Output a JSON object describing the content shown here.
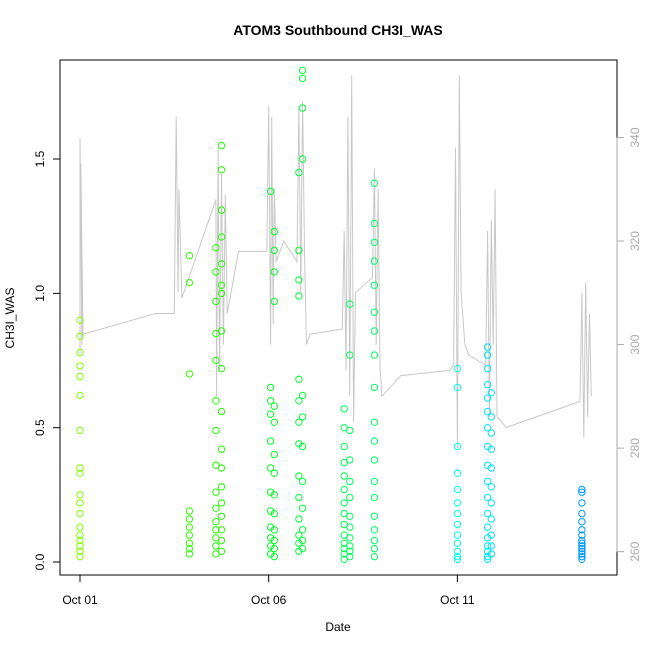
{
  "chart_data": {
    "type": "scatter",
    "title": "ATOM3 Southbound CH3I_WAS",
    "xlabel": "Date",
    "ylabel": "CH3I_WAS",
    "x_ticks": [
      "Oct 01",
      "Oct 06",
      "Oct 11"
    ],
    "x_tick_values": [
      1,
      6,
      11
    ],
    "xlim": [
      1,
      14.7
    ],
    "y_ticks": [
      "0.0",
      "0.5",
      "1.0",
      "1.5"
    ],
    "y_tick_values": [
      0,
      0.5,
      1.0,
      1.5
    ],
    "ylim": [
      0,
      1.85
    ],
    "y2_ticks": [
      "260",
      "280",
      "300",
      "320",
      "340"
    ],
    "y2_tick_values": [
      260,
      280,
      300,
      320,
      340
    ],
    "y2lim": [
      258,
      354
    ],
    "grid": false,
    "legend": "none",
    "colors": {
      "axis": "#000000",
      "axis2": "#aaaaaa",
      "trace": "#c8c8c8"
    },
    "series": [
      {
        "values_axis": "left",
        "points": [
          {
            "x": 1.0,
            "y": [
              0.02,
              0.04,
              0.06,
              0.08,
              0.1,
              0.13,
              0.18,
              0.22,
              0.25,
              0.33,
              0.35,
              0.49,
              0.62,
              0.69,
              0.73,
              0.78,
              0.84,
              0.9
            ],
            "color": "#7fff00"
          },
          {
            "x": 3.9,
            "y": [
              0.03,
              0.05,
              0.07,
              0.1,
              0.13,
              0.16,
              0.19,
              0.7,
              1.04,
              1.14
            ],
            "color": "#33ff00"
          },
          {
            "x": 4.6,
            "y": [
              0.03,
              0.06,
              0.09,
              0.12,
              0.15,
              0.2,
              0.26,
              0.36,
              0.49,
              0.6,
              0.75,
              0.85,
              0.97,
              1.08,
              1.17
            ],
            "color": "#22ff00"
          },
          {
            "x": 4.75,
            "y": [
              0.04,
              0.08,
              0.12,
              0.17,
              0.22,
              0.28,
              0.35,
              0.42,
              0.56,
              0.72,
              0.86,
              1.0,
              1.03,
              1.11,
              1.21,
              1.31,
              1.46,
              1.55
            ],
            "color": "#22ff00"
          },
          {
            "x": 6.05,
            "y": [
              0.03,
              0.06,
              0.09,
              0.13,
              0.19,
              0.26,
              0.35,
              0.45,
              0.55,
              0.6,
              0.65,
              1.38
            ],
            "color": "#00ff22"
          },
          {
            "x": 6.15,
            "y": [
              0.02,
              0.05,
              0.08,
              0.12,
              0.18,
              0.25,
              0.33,
              0.4,
              0.52,
              0.58,
              0.97,
              1.08,
              1.16,
              1.23
            ],
            "color": "#00ff22"
          },
          {
            "x": 6.8,
            "y": [
              0.04,
              0.07,
              0.1,
              0.16,
              0.24,
              0.32,
              0.44,
              0.52,
              0.6,
              0.68,
              0.99,
              1.05,
              1.16,
              1.45
            ],
            "color": "#00ff33"
          },
          {
            "x": 6.9,
            "y": [
              0.05,
              0.08,
              0.12,
              0.2,
              0.3,
              0.43,
              0.54,
              0.62,
              1.5,
              1.69,
              1.8,
              1.83
            ],
            "color": "#00ff33"
          },
          {
            "x": 8.0,
            "y": [
              0.01,
              0.03,
              0.05,
              0.07,
              0.1,
              0.14,
              0.18,
              0.22,
              0.27,
              0.32,
              0.37,
              0.43,
              0.5,
              0.57
            ],
            "color": "#00ff55"
          },
          {
            "x": 8.15,
            "y": [
              0.02,
              0.04,
              0.06,
              0.09,
              0.13,
              0.17,
              0.24,
              0.3,
              0.38,
              0.49,
              0.77,
              0.96
            ],
            "color": "#00ff55"
          },
          {
            "x": 8.8,
            "y": [
              0.02,
              0.05,
              0.08,
              0.12,
              0.17,
              0.24,
              0.3,
              0.38,
              0.45,
              0.52,
              0.65,
              0.77,
              0.86,
              0.93,
              1.03,
              1.12,
              1.19,
              1.26,
              1.41
            ],
            "color": "#00ff66"
          },
          {
            "x": 11.0,
            "y": [
              0.01,
              0.02,
              0.04,
              0.07,
              0.1,
              0.14,
              0.18,
              0.22,
              0.27,
              0.33,
              0.43,
              0.65,
              0.72
            ],
            "color": "#00ffee"
          },
          {
            "x": 11.8,
            "y": [
              0.01,
              0.02,
              0.04,
              0.06,
              0.09,
              0.13,
              0.18,
              0.24,
              0.3,
              0.36,
              0.43,
              0.5,
              0.56,
              0.61,
              0.66,
              0.72,
              0.77,
              0.8
            ],
            "color": "#00e5ff"
          },
          {
            "x": 11.9,
            "y": [
              0.03,
              0.06,
              0.1,
              0.16,
              0.22,
              0.28,
              0.35,
              0.42,
              0.48,
              0.54,
              0.63
            ],
            "color": "#00e5ff"
          },
          {
            "x": 14.3,
            "y": [
              0.01,
              0.02,
              0.03,
              0.04,
              0.05,
              0.06,
              0.07,
              0.08,
              0.1,
              0.12,
              0.15,
              0.18,
              0.22,
              0.26,
              0.27
            ],
            "color": "#0099ff"
          }
        ]
      },
      {
        "values_axis": "right",
        "trace": [
          [
            1.0,
            298
          ],
          [
            1.0,
            340
          ],
          [
            1.05,
            300
          ],
          [
            1.02,
            335
          ],
          [
            1.08,
            302
          ],
          [
            3.0,
            306
          ],
          [
            3.5,
            306
          ],
          [
            3.55,
            344
          ],
          [
            3.6,
            310
          ],
          [
            3.62,
            330
          ],
          [
            3.7,
            309
          ],
          [
            4.6,
            328
          ],
          [
            4.62,
            290
          ],
          [
            4.66,
            338
          ],
          [
            4.7,
            295
          ],
          [
            4.75,
            333
          ],
          [
            4.8,
            300
          ],
          [
            4.85,
            329
          ],
          [
            4.9,
            306
          ],
          [
            5.2,
            318
          ],
          [
            5.95,
            318
          ],
          [
            6.0,
            346
          ],
          [
            6.05,
            300
          ],
          [
            6.08,
            344
          ],
          [
            6.12,
            304
          ],
          [
            6.15,
            330
          ],
          [
            6.2,
            316
          ],
          [
            6.4,
            320
          ],
          [
            6.75,
            316
          ],
          [
            6.8,
            346
          ],
          [
            6.85,
            310
          ],
          [
            6.9,
            347
          ],
          [
            6.95,
            318
          ],
          [
            7.0,
            300
          ],
          [
            7.1,
            302
          ],
          [
            7.95,
            303
          ],
          [
            8.0,
            322
          ],
          [
            8.05,
            295
          ],
          [
            8.1,
            344
          ],
          [
            8.15,
            290
          ],
          [
            8.2,
            352
          ],
          [
            8.25,
            285
          ],
          [
            8.3,
            310
          ],
          [
            8.75,
            313
          ],
          [
            8.8,
            334
          ],
          [
            8.85,
            300
          ],
          [
            8.9,
            330
          ],
          [
            8.95,
            296
          ],
          [
            9.0,
            290
          ],
          [
            9.5,
            294
          ],
          [
            10.8,
            295
          ],
          [
            10.9,
            296
          ],
          [
            10.95,
            338
          ],
          [
            11.0,
            280
          ],
          [
            11.05,
            352
          ],
          [
            11.1,
            310
          ],
          [
            11.2,
            300
          ],
          [
            11.3,
            298
          ],
          [
            11.75,
            296
          ],
          [
            11.8,
            322
          ],
          [
            11.85,
            286
          ],
          [
            11.9,
            324
          ],
          [
            11.95,
            300
          ],
          [
            12.0,
            330
          ],
          [
            12.05,
            286
          ],
          [
            12.3,
            284
          ],
          [
            14.25,
            289
          ],
          [
            14.3,
            310
          ],
          [
            14.35,
            282
          ],
          [
            14.4,
            312
          ],
          [
            14.45,
            286
          ],
          [
            14.5,
            306
          ],
          [
            14.55,
            290
          ]
        ]
      }
    ]
  }
}
